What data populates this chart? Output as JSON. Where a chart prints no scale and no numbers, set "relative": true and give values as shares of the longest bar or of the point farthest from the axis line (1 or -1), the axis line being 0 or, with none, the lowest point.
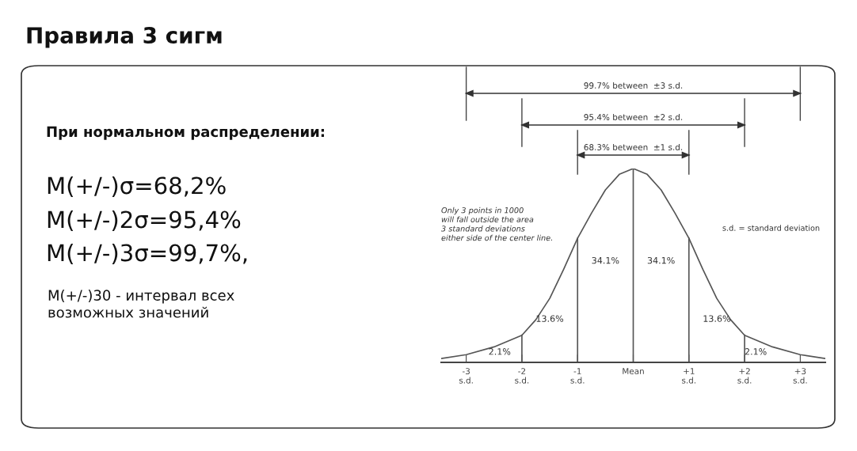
{
  "chart_data": [
    {
      "type": "other",
      "title": "Правила 3 сигм",
      "subtitle": "При нормальном распределении:",
      "annotations": [
        "M(+/-)σ=68,2%",
        "M(+/-)2σ=95,4%",
        "M(+/-)3σ=99,7%,",
        "M(+/-)30 - интервал всех\nвозможных значений"
      ]
    },
    {
      "type": "line",
      "relative": true,
      "color": "#555555",
      "x": [
        -3.45,
        -3,
        -2.5,
        -2,
        -1.75,
        -1.5,
        -1.25,
        -1,
        -0.75,
        -0.5,
        -0.25,
        0,
        0.25,
        0.5,
        0.75,
        1,
        1.25,
        1.5,
        1.75,
        2,
        2.5,
        3,
        3.45
      ],
      "values": [
        0.02,
        0.04,
        0.08,
        0.14,
        0.22,
        0.33,
        0.48,
        0.64,
        0.77,
        0.89,
        0.97,
        1,
        0.97,
        0.89,
        0.77,
        0.64,
        0.48,
        0.33,
        0.22,
        0.14,
        0.08,
        0.04,
        0.02
      ],
      "xlim": [
        -3.45,
        3.45
      ],
      "xticks": [
        {
          "value": -3,
          "label": "-3\ns.d."
        },
        {
          "value": -2,
          "label": "-2\ns.d."
        },
        {
          "value": -1,
          "label": "-1\ns.d."
        },
        {
          "value": 0,
          "label": "Mean"
        },
        {
          "value": 1,
          "label": "+1\ns.d."
        },
        {
          "value": 2,
          "label": "+2\ns.d."
        },
        {
          "value": 3,
          "label": "+3\ns.d."
        }
      ],
      "ref_lines": [
        {
          "axis": "x",
          "value": -2
        },
        {
          "axis": "x",
          "value": -1
        },
        {
          "axis": "x",
          "value": 0
        },
        {
          "axis": "x",
          "value": 1
        },
        {
          "axis": "x",
          "value": 2
        }
      ],
      "annotations": [
        "99.7% between  ±3 s.d.",
        "95.4% between  ±2 s.d.",
        "68.3% between  ±1 s.d.",
        "34.1%",
        "34.1%",
        "13.6%",
        "13.6%",
        "2.1%",
        "2.1%",
        "Only 3 points in 1000\nwill fall outside the area\n3 standard deviations\neither side of the center line.",
        "s.d. = standard deviation"
      ],
      "grid": false,
      "legend": false
    }
  ]
}
